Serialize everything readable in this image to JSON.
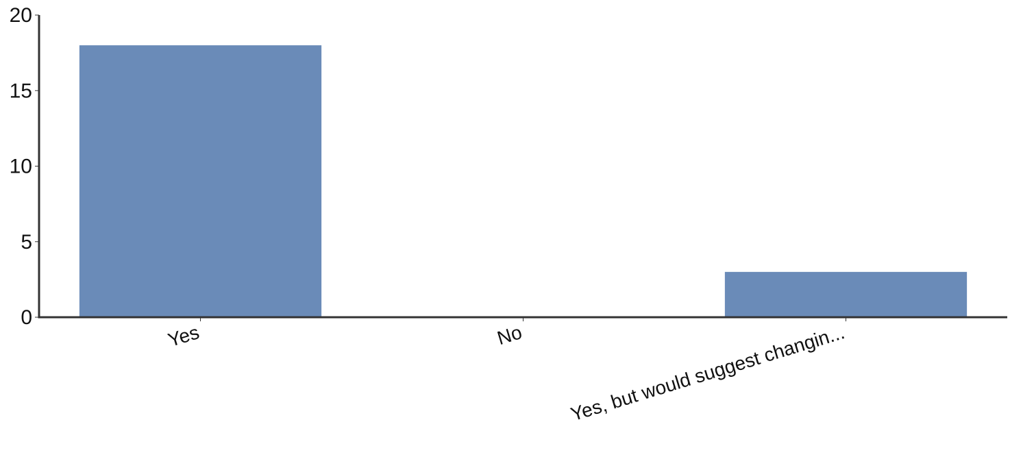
{
  "chart_data": {
    "type": "bar",
    "categories": [
      "Yes",
      "No",
      "Yes, but would suggest changin..."
    ],
    "values": [
      18,
      0,
      3
    ],
    "ylim": [
      0,
      20
    ],
    "yticks": [
      0,
      5,
      10,
      15,
      20
    ],
    "title": "",
    "xlabel": "",
    "ylabel": "",
    "grid": false,
    "legend": "none",
    "bar_color": "#6a8bb8",
    "axis_color": "#333333"
  }
}
